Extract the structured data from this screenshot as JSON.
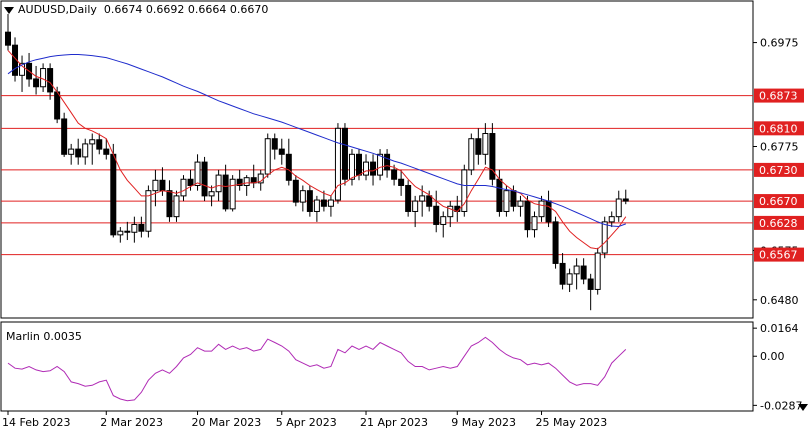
{
  "header": {
    "symbol_timeframe": "AUDUSD,Daily",
    "ohlc": "0.6674 0.6692 0.6664 0.6670"
  },
  "indicator": {
    "label": "Marlin 0.0035"
  },
  "colors": {
    "background": "#ffffff",
    "candle_bull": "#ffffff",
    "candle_bear": "#000000",
    "level_lines": "#e02020",
    "fast_ma": "#e02020",
    "slow_ma": "#1f2ccc",
    "oscillator": "#b02bb5",
    "price_badge": "#e02020"
  },
  "chart_data": [
    {
      "type": "candlestick",
      "title": "AUDUSD,Daily",
      "x_tick_labels": [
        "14 Feb 2023",
        "2 Mar 2023",
        "20 Mar 2023",
        "5 Apr 2023",
        "21 Apr 2023",
        "9 May 2023",
        "25 May 2023"
      ],
      "y_tick_labels": [
        "0.6975",
        "0.6775",
        "0.6575",
        "0.6480"
      ],
      "ylim": [
        0.6445,
        0.7055
      ],
      "grid": false,
      "horizontal_levels": [
        0.6873,
        0.681,
        0.673,
        0.667,
        0.6628,
        0.6567
      ],
      "level_labels": [
        "0.6873",
        "0.6810",
        "0.6730",
        "0.6670",
        "0.6628",
        "0.6567"
      ],
      "series": [
        {
          "kind": "ohlc",
          "ohlc": [
            [
              0.6995,
              0.703,
              0.696,
              0.697
            ],
            [
              0.697,
              0.6985,
              0.69,
              0.6912
            ],
            [
              0.6912,
              0.695,
              0.688,
              0.6935
            ],
            [
              0.6935,
              0.6955,
              0.689,
              0.6905
            ],
            [
              0.6905,
              0.693,
              0.6875,
              0.689
            ],
            [
              0.689,
              0.6935,
              0.688,
              0.6925
            ],
            [
              0.6925,
              0.6935,
              0.6865,
              0.688
            ],
            [
              0.688,
              0.689,
              0.682,
              0.6828
            ],
            [
              0.6828,
              0.684,
              0.6755,
              0.676
            ],
            [
              0.676,
              0.678,
              0.674,
              0.677
            ],
            [
              0.677,
              0.679,
              0.674,
              0.6755
            ],
            [
              0.6755,
              0.679,
              0.674,
              0.678
            ],
            [
              0.678,
              0.68,
              0.674,
              0.6788
            ],
            [
              0.6788,
              0.68,
              0.676,
              0.677
            ],
            [
              0.677,
              0.679,
              0.675,
              0.676
            ],
            [
              0.676,
              0.678,
              0.66,
              0.6605
            ],
            [
              0.6605,
              0.662,
              0.659,
              0.6612
            ],
            [
              0.6612,
              0.663,
              0.6595,
              0.661
            ],
            [
              0.661,
              0.664,
              0.659,
              0.6625
            ],
            [
              0.6625,
              0.664,
              0.66,
              0.6612
            ],
            [
              0.6612,
              0.67,
              0.66,
              0.669
            ],
            [
              0.669,
              0.673,
              0.666,
              0.671
            ],
            [
              0.671,
              0.6735,
              0.668,
              0.669
            ],
            [
              0.669,
              0.671,
              0.663,
              0.664
            ],
            [
              0.664,
              0.669,
              0.663,
              0.668
            ],
            [
              0.668,
              0.672,
              0.667,
              0.6712
            ],
            [
              0.6712,
              0.673,
              0.669,
              0.67
            ],
            [
              0.67,
              0.676,
              0.669,
              0.6745
            ],
            [
              0.6745,
              0.6755,
              0.667,
              0.668
            ],
            [
              0.668,
              0.67,
              0.666,
              0.6688
            ],
            [
              0.6688,
              0.673,
              0.667,
              0.672
            ],
            [
              0.672,
              0.674,
              0.665,
              0.6655
            ],
            [
              0.6655,
              0.672,
              0.665,
              0.6712
            ],
            [
              0.6712,
              0.673,
              0.669,
              0.67
            ],
            [
              0.67,
              0.672,
              0.668,
              0.6715
            ],
            [
              0.6715,
              0.674,
              0.6695,
              0.6705
            ],
            [
              0.6705,
              0.673,
              0.669,
              0.6722
            ],
            [
              0.6722,
              0.68,
              0.6715,
              0.679
            ],
            [
              0.679,
              0.68,
              0.675,
              0.677
            ],
            [
              0.677,
              0.679,
              0.674,
              0.676
            ],
            [
              0.676,
              0.679,
              0.67,
              0.671
            ],
            [
              0.671,
              0.672,
              0.666,
              0.6668
            ],
            [
              0.6668,
              0.67,
              0.665,
              0.669
            ],
            [
              0.669,
              0.67,
              0.664,
              0.665
            ],
            [
              0.665,
              0.668,
              0.663,
              0.6672
            ],
            [
              0.6672,
              0.669,
              0.665,
              0.666
            ],
            [
              0.666,
              0.668,
              0.664,
              0.6672
            ],
            [
              0.6672,
              0.682,
              0.6665,
              0.681
            ],
            [
              0.681,
              0.682,
              0.67,
              0.6712
            ],
            [
              0.6712,
              0.677,
              0.67,
              0.676
            ],
            [
              0.676,
              0.677,
              0.671,
              0.672
            ],
            [
              0.672,
              0.676,
              0.671,
              0.6745
            ],
            [
              0.6745,
              0.676,
              0.67,
              0.672
            ],
            [
              0.672,
              0.677,
              0.671,
              0.676
            ],
            [
              0.676,
              0.677,
              0.6715,
              0.673
            ],
            [
              0.673,
              0.674,
              0.67,
              0.6712
            ],
            [
              0.6712,
              0.673,
              0.668,
              0.67
            ],
            [
              0.67,
              0.671,
              0.664,
              0.665
            ],
            [
              0.665,
              0.668,
              0.662,
              0.667
            ],
            [
              0.667,
              0.67,
              0.664,
              0.668
            ],
            [
              0.668,
              0.669,
              0.665,
              0.666
            ],
            [
              0.666,
              0.669,
              0.661,
              0.6625
            ],
            [
              0.6625,
              0.665,
              0.66,
              0.664
            ],
            [
              0.664,
              0.667,
              0.662,
              0.666
            ],
            [
              0.666,
              0.668,
              0.663,
              0.665
            ],
            [
              0.665,
              0.674,
              0.664,
              0.673
            ],
            [
              0.673,
              0.68,
              0.672,
              0.679
            ],
            [
              0.679,
              0.681,
              0.674,
              0.676
            ],
            [
              0.676,
              0.682,
              0.674,
              0.68
            ],
            [
              0.68,
              0.682,
              0.67,
              0.6712
            ],
            [
              0.6712,
              0.673,
              0.664,
              0.665
            ],
            [
              0.665,
              0.67,
              0.664,
              0.669
            ],
            [
              0.669,
              0.67,
              0.665,
              0.666
            ],
            [
              0.666,
              0.668,
              0.664,
              0.667
            ],
            [
              0.667,
              0.668,
              0.66,
              0.6615
            ],
            [
              0.6615,
              0.665,
              0.66,
              0.664
            ],
            [
              0.664,
              0.668,
              0.663,
              0.667
            ],
            [
              0.667,
              0.669,
              0.662,
              0.663
            ],
            [
              0.663,
              0.664,
              0.654,
              0.655
            ],
            [
              0.655,
              0.657,
              0.65,
              0.651
            ],
            [
              0.651,
              0.654,
              0.6495,
              0.653
            ],
            [
              0.653,
              0.656,
              0.65,
              0.6545
            ],
            [
              0.6545,
              0.656,
              0.651,
              0.652
            ],
            [
              0.652,
              0.653,
              0.646,
              0.65
            ],
            [
              0.65,
              0.658,
              0.649,
              0.657
            ],
            [
              0.657,
              0.664,
              0.656,
              0.663
            ],
            [
              0.663,
              0.665,
              0.662,
              0.664
            ],
            [
              0.664,
              0.669,
              0.663,
              0.6674
            ],
            [
              0.6674,
              0.6692,
              0.6664,
              0.667
            ]
          ]
        },
        {
          "kind": "line",
          "values": [
            0.696,
            0.6945,
            0.693,
            0.692,
            0.691,
            0.6905,
            0.6898,
            0.688,
            0.686,
            0.684,
            0.682,
            0.681,
            0.6805,
            0.6798,
            0.679,
            0.676,
            0.673,
            0.671,
            0.6695,
            0.668,
            0.668,
            0.6685,
            0.669,
            0.6688,
            0.6685,
            0.669,
            0.6698,
            0.6705,
            0.67,
            0.6695,
            0.67,
            0.6698,
            0.67,
            0.6702,
            0.6705,
            0.6705,
            0.6708,
            0.672,
            0.673,
            0.6735,
            0.673,
            0.6718,
            0.671,
            0.67,
            0.6692,
            0.6685,
            0.668,
            0.67,
            0.6705,
            0.6715,
            0.672,
            0.6728,
            0.6728,
            0.6735,
            0.6738,
            0.6735,
            0.6728,
            0.6712,
            0.6698,
            0.669,
            0.6682,
            0.667,
            0.666,
            0.6655,
            0.665,
            0.6665,
            0.669,
            0.6712,
            0.6735,
            0.673,
            0.6712,
            0.67,
            0.669,
            0.6685,
            0.6672,
            0.6665,
            0.6662,
            0.666,
            0.665,
            0.663,
            0.6612,
            0.66,
            0.659,
            0.658,
            0.6578,
            0.659,
            0.6605,
            0.662,
            0.664
          ]
        },
        {
          "kind": "line",
          "values": [
            0.6915,
            0.6925,
            0.6932,
            0.6938,
            0.6942,
            0.6945,
            0.6948,
            0.695,
            0.6951,
            0.6952,
            0.6952,
            0.6951,
            0.695,
            0.6948,
            0.6946,
            0.6942,
            0.6938,
            0.6934,
            0.6929,
            0.6924,
            0.6919,
            0.6914,
            0.6909,
            0.6903,
            0.6897,
            0.6891,
            0.6886,
            0.6881,
            0.6875,
            0.6869,
            0.6863,
            0.6858,
            0.6853,
            0.6848,
            0.6843,
            0.6838,
            0.6834,
            0.683,
            0.6826,
            0.6822,
            0.6817,
            0.6812,
            0.6807,
            0.6802,
            0.6797,
            0.6792,
            0.6787,
            0.6782,
            0.6778,
            0.6774,
            0.677,
            0.6766,
            0.6762,
            0.6757,
            0.6752,
            0.6747,
            0.6743,
            0.6738,
            0.6733,
            0.6728,
            0.6723,
            0.6718,
            0.6713,
            0.6708,
            0.6703,
            0.67,
            0.67,
            0.67,
            0.67,
            0.6698,
            0.6695,
            0.6692,
            0.669,
            0.6686,
            0.6682,
            0.6678,
            0.6674,
            0.667,
            0.6665,
            0.666,
            0.6654,
            0.6648,
            0.6642,
            0.6636,
            0.663,
            0.6625,
            0.6622,
            0.6621,
            0.6626
          ]
        }
      ]
    },
    {
      "type": "line",
      "title": "Marlin 0.0035",
      "y_tick_labels": [
        "0.0164",
        "0.00",
        "-0.0287"
      ],
      "ylim": [
        -0.032,
        0.02
      ],
      "series": [
        {
          "kind": "line",
          "values": [
            -0.004,
            -0.007,
            -0.0075,
            -0.006,
            -0.008,
            -0.009,
            -0.0085,
            -0.006,
            -0.009,
            -0.015,
            -0.016,
            -0.0175,
            -0.017,
            -0.015,
            -0.014,
            -0.023,
            -0.025,
            -0.026,
            -0.0255,
            -0.021,
            -0.014,
            -0.01,
            -0.008,
            -0.01,
            -0.006,
            -0.001,
            0.001,
            0.005,
            0.003,
            0.003,
            0.007,
            0.004,
            0.006,
            0.004,
            0.005,
            0.003,
            0.004,
            0.01,
            0.008,
            0.006,
            0.003,
            -0.002,
            -0.004,
            -0.006,
            -0.005,
            -0.007,
            -0.006,
            0.004,
            0.002,
            0.006,
            0.004,
            0.006,
            0.004,
            0.008,
            0.006,
            0.004,
            0.002,
            -0.003,
            -0.006,
            -0.006,
            -0.008,
            -0.007,
            -0.006,
            -0.007,
            -0.006,
            0.0,
            0.006,
            0.008,
            0.011,
            0.008,
            0.004,
            0.001,
            -0.001,
            -0.002,
            -0.005,
            -0.004,
            -0.005,
            -0.004,
            -0.007,
            -0.011,
            -0.015,
            -0.017,
            -0.016,
            -0.016,
            -0.017,
            -0.012,
            -0.004,
            0.0,
            0.004
          ]
        }
      ]
    }
  ]
}
